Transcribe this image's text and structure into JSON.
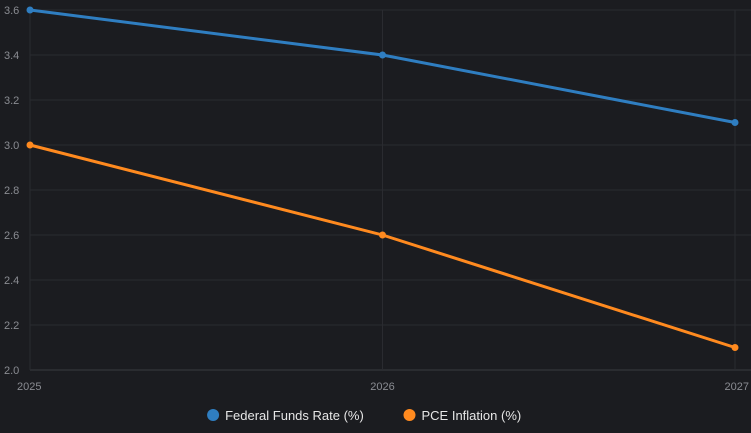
{
  "chart_data": {
    "type": "line",
    "x": [
      "2025",
      "2026",
      "2027"
    ],
    "ylim": [
      2.0,
      3.6
    ],
    "yticks": [
      "2.0",
      "2.2",
      "2.4",
      "2.6",
      "2.8",
      "3.0",
      "3.2",
      "3.4",
      "3.6"
    ],
    "grid": true,
    "legend": "bottom",
    "series": [
      {
        "name": "Federal Funds Rate (%)",
        "color": "#2f7ec1",
        "values": [
          3.6,
          3.4,
          3.1
        ]
      },
      {
        "name": "PCE Inflation (%)",
        "color": "#ff8a1f",
        "values": [
          3.0,
          2.6,
          2.1
        ]
      }
    ]
  }
}
